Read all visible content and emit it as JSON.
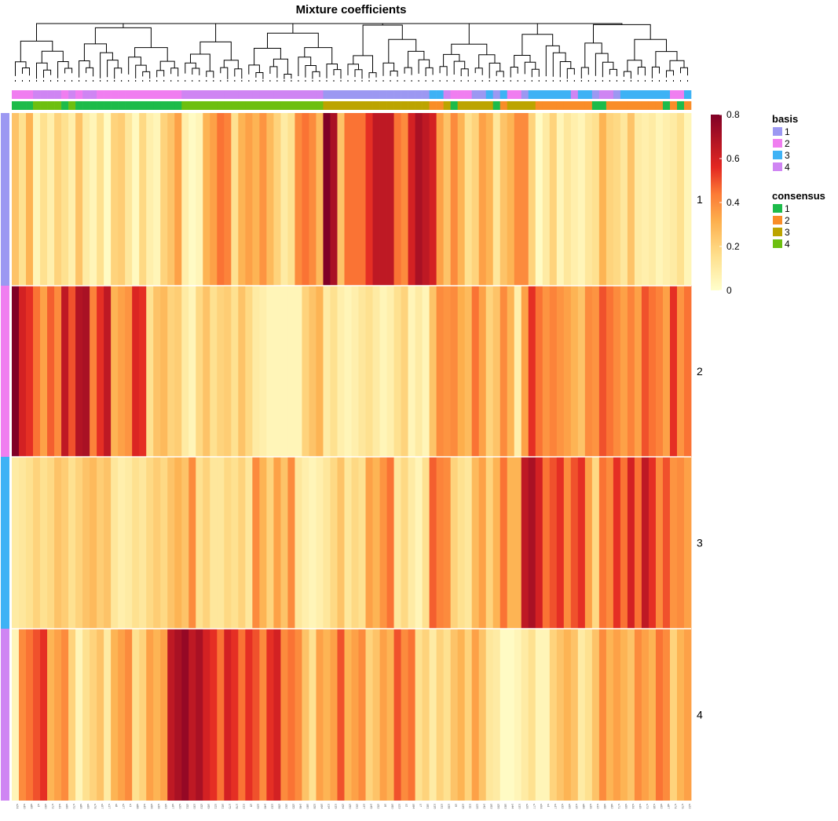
{
  "chart_data": {
    "type": "heatmap",
    "title": "Mixture coefficients",
    "rows": [
      "1",
      "2",
      "3",
      "4"
    ],
    "n_columns": 96,
    "column_labels": [
      "s24",
      "s40",
      "s85",
      "s3",
      "s90",
      "s72",
      "s41",
      "s66",
      "s70",
      "s89",
      "s65",
      "s76",
      "s57",
      "s17",
      "s8",
      "s27",
      "s1",
      "s88",
      "s43",
      "s96",
      "s36",
      "s93",
      "s67",
      "s20",
      "s51",
      "s30",
      "s53",
      "s69",
      "s21",
      "s61",
      "s75",
      "s78",
      "s13",
      "s5",
      "s29",
      "s46",
      "s33",
      "s58",
      "s92",
      "s55",
      "s48",
      "s80",
      "s28",
      "s64",
      "s14",
      "s19",
      "s54",
      "s50",
      "s91",
      "s37",
      "s45",
      "s52",
      "s6",
      "s60",
      "s23",
      "s2",
      "s84",
      "s7",
      "s81",
      "s16",
      "s31",
      "s38",
      "s9",
      "s35",
      "s11",
      "s26",
      "s42",
      "s63",
      "s56",
      "s83",
      "s44",
      "s10",
      "s25",
      "s77",
      "s94",
      "s4",
      "s47",
      "s32",
      "s95",
      "s15",
      "s86",
      "s39",
      "s12",
      "s68",
      "s82",
      "s71",
      "s59",
      "s34",
      "s49",
      "s73",
      "s18",
      "s62",
      "s87",
      "s74",
      "s79",
      "s22"
    ],
    "basis_annotation": [
      2,
      2,
      2,
      4,
      4,
      4,
      4,
      2,
      4,
      2,
      4,
      4,
      2,
      2,
      2,
      2,
      2,
      2,
      2,
      2,
      2,
      2,
      2,
      2,
      4,
      4,
      4,
      4,
      4,
      4,
      4,
      4,
      4,
      4,
      4,
      4,
      4,
      4,
      4,
      4,
      4,
      4,
      4,
      4,
      1,
      1,
      1,
      1,
      1,
      1,
      1,
      1,
      1,
      1,
      1,
      1,
      1,
      1,
      1,
      3,
      3,
      4,
      2,
      2,
      2,
      1,
      1,
      3,
      1,
      3,
      2,
      2,
      1,
      3,
      3,
      3,
      3,
      3,
      3,
      4,
      3,
      3,
      1,
      4,
      4,
      1,
      3,
      3,
      3,
      3,
      3,
      3,
      3,
      2,
      2,
      3
    ],
    "consensus_annotation": [
      1,
      1,
      1,
      4,
      4,
      4,
      4,
      1,
      4,
      1,
      1,
      1,
      1,
      1,
      1,
      1,
      1,
      1,
      1,
      1,
      1,
      1,
      1,
      1,
      4,
      4,
      4,
      4,
      4,
      4,
      4,
      4,
      4,
      4,
      4,
      4,
      4,
      4,
      4,
      4,
      4,
      4,
      4,
      4,
      3,
      3,
      3,
      3,
      3,
      3,
      3,
      3,
      3,
      3,
      3,
      3,
      3,
      3,
      3,
      2,
      2,
      3,
      1,
      3,
      3,
      3,
      3,
      3,
      1,
      2,
      3,
      3,
      3,
      3,
      2,
      2,
      2,
      2,
      2,
      2,
      2,
      2,
      1,
      1,
      2,
      2,
      2,
      2,
      2,
      2,
      2,
      2,
      1,
      2,
      1,
      2
    ],
    "values": [
      [
        0.25,
        0.15,
        0.3,
        0.05,
        0.15,
        0.08,
        0.2,
        0.15,
        0.08,
        0.25,
        0.1,
        0.05,
        0.15,
        0.02,
        0.2,
        0.22,
        0.12,
        0.03,
        0.18,
        0.08,
        0.05,
        0.2,
        0.25,
        0.35,
        0.08,
        0.02,
        0.05,
        0.3,
        0.35,
        0.45,
        0.42,
        0.15,
        0.3,
        0.35,
        0.3,
        0.38,
        0.28,
        0.2,
        0.1,
        0.15,
        0.4,
        0.45,
        0.4,
        0.28,
        0.8,
        0.7,
        0.25,
        0.45,
        0.45,
        0.45,
        0.55,
        0.65,
        0.65,
        0.65,
        0.45,
        0.4,
        0.6,
        0.7,
        0.65,
        0.6,
        0.35,
        0.25,
        0.4,
        0.3,
        0.15,
        0.2,
        0.35,
        0.3,
        0.12,
        0.25,
        0.3,
        0.4,
        0.4,
        0.2,
        0.02,
        0.1,
        0.2,
        0.05,
        0.12,
        0.08,
        0.05,
        0.12,
        0.15,
        0.3,
        0.2,
        0.18,
        0.12,
        0.25,
        0.1,
        0.08,
        0.1,
        0.05,
        0.08,
        0.1,
        0.15,
        0.05
      ],
      [
        0.8,
        0.6,
        0.55,
        0.45,
        0.35,
        0.48,
        0.4,
        0.65,
        0.5,
        0.68,
        0.7,
        0.42,
        0.55,
        0.65,
        0.3,
        0.35,
        0.38,
        0.58,
        0.55,
        0.15,
        0.25,
        0.28,
        0.2,
        0.22,
        0.1,
        0.05,
        0.18,
        0.25,
        0.15,
        0.2,
        0.22,
        0.15,
        0.25,
        0.18,
        0.1,
        0.08,
        0.05,
        0.05,
        0.05,
        0.05,
        0.05,
        0.2,
        0.25,
        0.3,
        0.1,
        0.15,
        0.08,
        0.05,
        0.08,
        0.12,
        0.15,
        0.1,
        0.05,
        0.08,
        0.15,
        0.2,
        0.05,
        0.1,
        0.05,
        0.25,
        0.4,
        0.38,
        0.4,
        0.32,
        0.28,
        0.45,
        0.35,
        0.2,
        0.25,
        0.4,
        0.3,
        0.08,
        0.35,
        0.55,
        0.45,
        0.38,
        0.42,
        0.38,
        0.35,
        0.3,
        0.25,
        0.4,
        0.38,
        0.5,
        0.45,
        0.4,
        0.35,
        0.42,
        0.35,
        0.5,
        0.45,
        0.42,
        0.35,
        0.55,
        0.38,
        0.45
      ],
      [
        0.1,
        0.12,
        0.15,
        0.2,
        0.15,
        0.18,
        0.25,
        0.22,
        0.15,
        0.2,
        0.25,
        0.28,
        0.22,
        0.25,
        0.12,
        0.08,
        0.1,
        0.15,
        0.12,
        0.18,
        0.22,
        0.18,
        0.25,
        0.3,
        0.25,
        0.4,
        0.15,
        0.2,
        0.12,
        0.12,
        0.18,
        0.15,
        0.2,
        0.12,
        0.4,
        0.3,
        0.2,
        0.35,
        0.25,
        0.4,
        0.12,
        0.08,
        0.05,
        0.08,
        0.12,
        0.18,
        0.25,
        0.12,
        0.18,
        0.15,
        0.35,
        0.3,
        0.38,
        0.45,
        0.12,
        0.18,
        0.1,
        0.05,
        0.15,
        0.48,
        0.42,
        0.4,
        0.2,
        0.15,
        0.12,
        0.28,
        0.35,
        0.2,
        0.3,
        0.45,
        0.3,
        0.3,
        0.65,
        0.7,
        0.6,
        0.45,
        0.5,
        0.55,
        0.4,
        0.5,
        0.55,
        0.35,
        0.18,
        0.45,
        0.4,
        0.55,
        0.45,
        0.6,
        0.45,
        0.65,
        0.55,
        0.4,
        0.5,
        0.38,
        0.4,
        0.35
      ],
      [
        0.05,
        0.4,
        0.45,
        0.5,
        0.55,
        0.3,
        0.35,
        0.4,
        0.2,
        0.05,
        0.15,
        0.2,
        0.25,
        0.1,
        0.3,
        0.35,
        0.4,
        0.15,
        0.2,
        0.35,
        0.3,
        0.35,
        0.65,
        0.7,
        0.75,
        0.65,
        0.7,
        0.6,
        0.55,
        0.45,
        0.6,
        0.55,
        0.45,
        0.55,
        0.5,
        0.4,
        0.55,
        0.6,
        0.4,
        0.45,
        0.4,
        0.25,
        0.15,
        0.35,
        0.3,
        0.35,
        0.5,
        0.3,
        0.35,
        0.4,
        0.2,
        0.25,
        0.35,
        0.3,
        0.5,
        0.4,
        0.45,
        0.15,
        0.2,
        0.1,
        0.2,
        0.15,
        0.25,
        0.3,
        0.2,
        0.35,
        0.25,
        0.12,
        0.1,
        0.02,
        0.02,
        0.05,
        0.1,
        0.15,
        0.05,
        0.05,
        0.2,
        0.25,
        0.3,
        0.25,
        0.1,
        0.15,
        0.25,
        0.4,
        0.3,
        0.35,
        0.3,
        0.25,
        0.4,
        0.35,
        0.3,
        0.45,
        0.4,
        0.2,
        0.3,
        0.35
      ]
    ],
    "scale_ticks": [
      0.8,
      0.6,
      0.4,
      0.2,
      0
    ],
    "scale_range": [
      0,
      0.8
    ],
    "legends": [
      {
        "title": "basis",
        "items": [
          "1",
          "2",
          "3",
          "4"
        ]
      },
      {
        "title": "consensus",
        "items": [
          "1",
          "2",
          "3",
          "4"
        ]
      }
    ],
    "basis_colors": [
      "#9c98f2",
      "#f07ef0",
      "#3eb2f5",
      "#cf85f3"
    ],
    "consensus_colors": [
      "#1dbb4a",
      "#f98d28",
      "#bca400",
      "#6dbf10"
    ],
    "dendrogram": "hierarchical clustering of columns (top)"
  }
}
